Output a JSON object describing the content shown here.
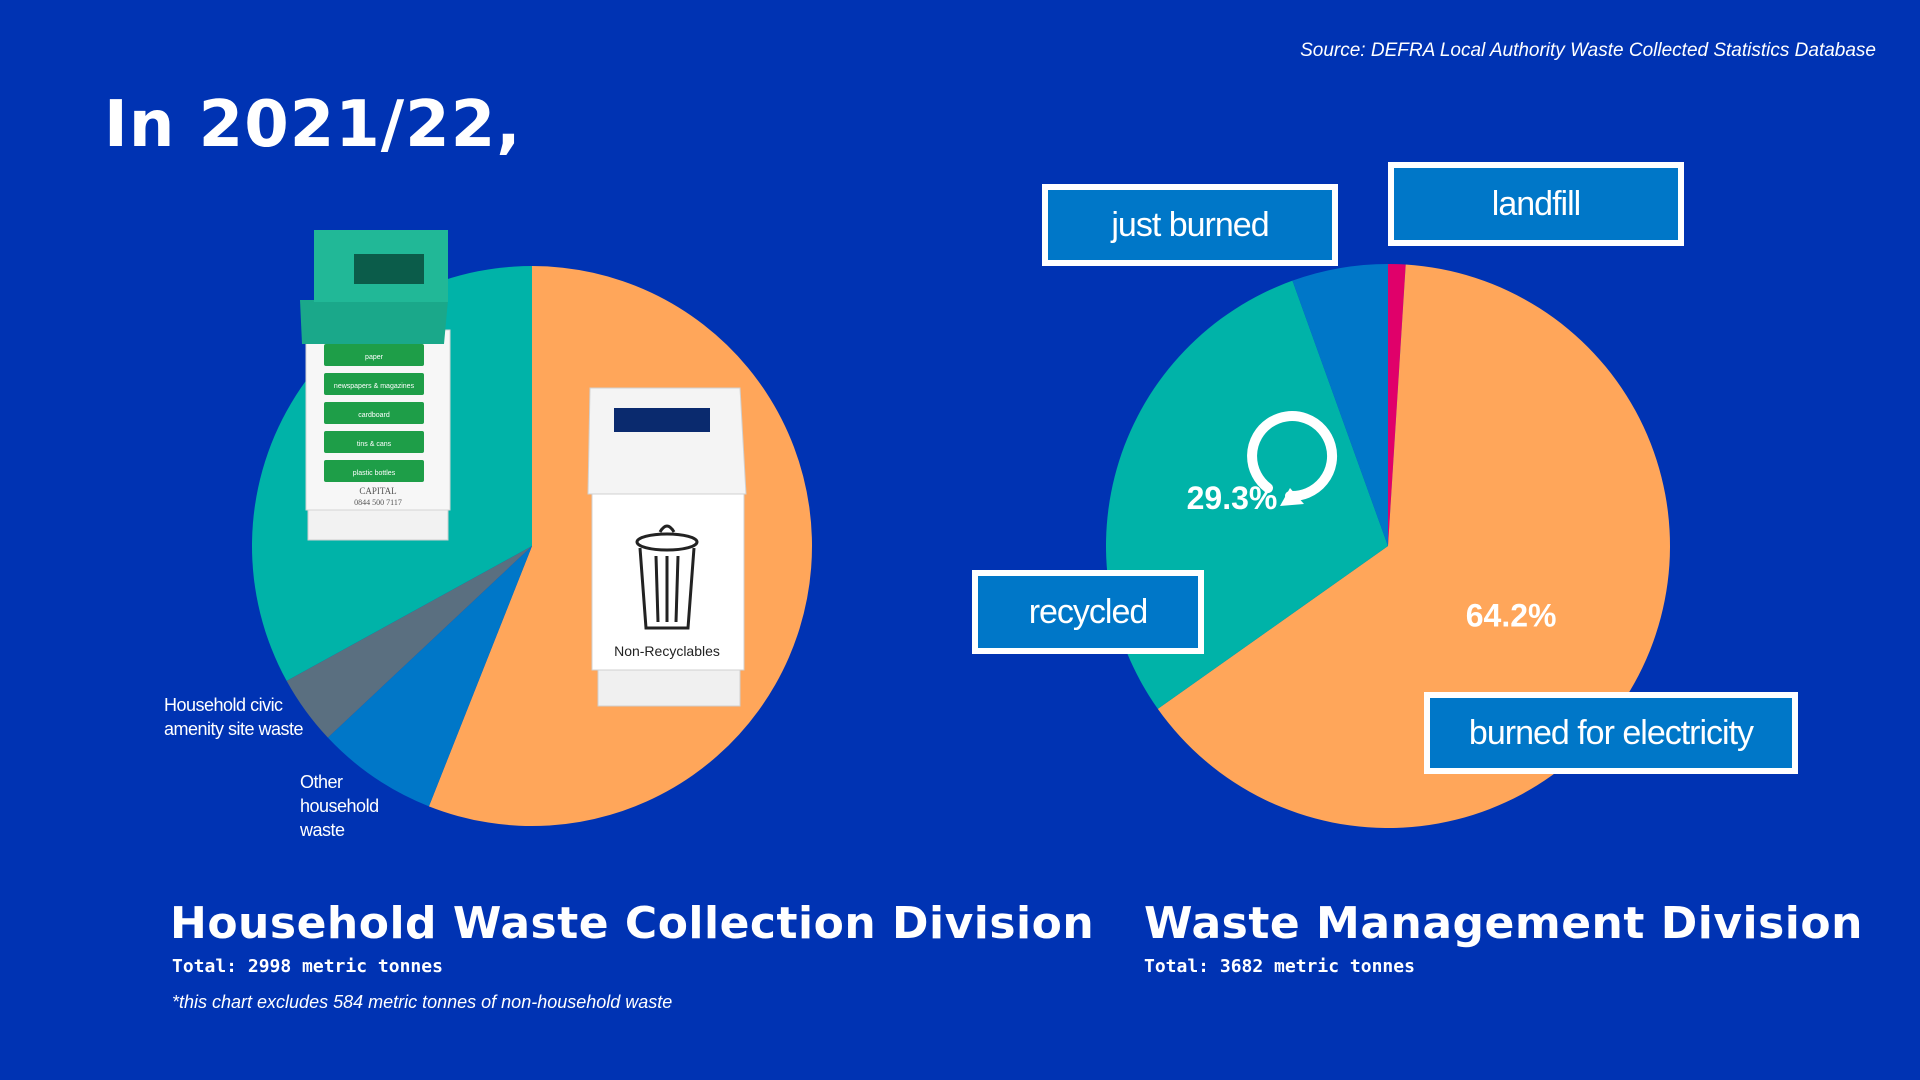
{
  "source": "Source: DEFRA Local Authority Waste Collected Statistics Database",
  "headline": "In 2021/22,",
  "colors": {
    "background": "#0033b3",
    "orange": "#ffa65a",
    "teal": "#00b3a8",
    "blue": "#0077c8",
    "slate": "#5a6f80",
    "magenta": "#e0006a",
    "tag_fill": "#0077c8"
  },
  "bins": {
    "recycling_bin": {
      "labels": [
        "paper",
        "newspapers & magazines",
        "cardboard",
        "tins & cans",
        "plastic bottles"
      ],
      "brand": "CAPITAL",
      "phone": "0844 500 7117"
    },
    "general_bin": {
      "label": "Non-Recyclables"
    }
  },
  "chart_data": [
    {
      "type": "pie",
      "title": "Household Waste Collection Division",
      "total": "Total: 2998 metric tonnes",
      "footnote": "*this chart excludes 584 metric tonnes of non-household waste",
      "slices": [
        {
          "name": "non-recyclables",
          "value": 56,
          "label": "56%",
          "color": "#ffa65a"
        },
        {
          "name": "Other household waste",
          "value": 7,
          "label": "Other household waste",
          "color": "#0077c8"
        },
        {
          "name": "Household civic amenity site waste",
          "value": 4,
          "label": "Household civic amenity site waste",
          "color": "#5a6f80"
        },
        {
          "name": "recycling",
          "value": 33,
          "label": "33%",
          "color": "#00b3a8"
        }
      ],
      "side_labels": {
        "civic": [
          "Household civic",
          "amenity site waste"
        ],
        "other": [
          "Other",
          "household",
          "waste"
        ]
      }
    },
    {
      "type": "pie",
      "title": "Waste Management Division",
      "total": "Total: 3682 metric tonnes",
      "slices": [
        {
          "name": "landfill",
          "value": 1.0,
          "label": "landfill",
          "color": "#e0006a"
        },
        {
          "name": "burned for electricity",
          "value": 64.2,
          "label": "64.2%",
          "color": "#ffa65a"
        },
        {
          "name": "recycled",
          "value": 29.3,
          "label": "29.3%",
          "color": "#00b3a8"
        },
        {
          "name": "just burned",
          "value": 5.5,
          "label": "just burned",
          "color": "#0077c8"
        }
      ],
      "tags": {
        "just_burned": "just burned",
        "landfill": "landfill",
        "recycled": "recycled",
        "burned_for_electricity": "burned for electricity"
      }
    }
  ]
}
